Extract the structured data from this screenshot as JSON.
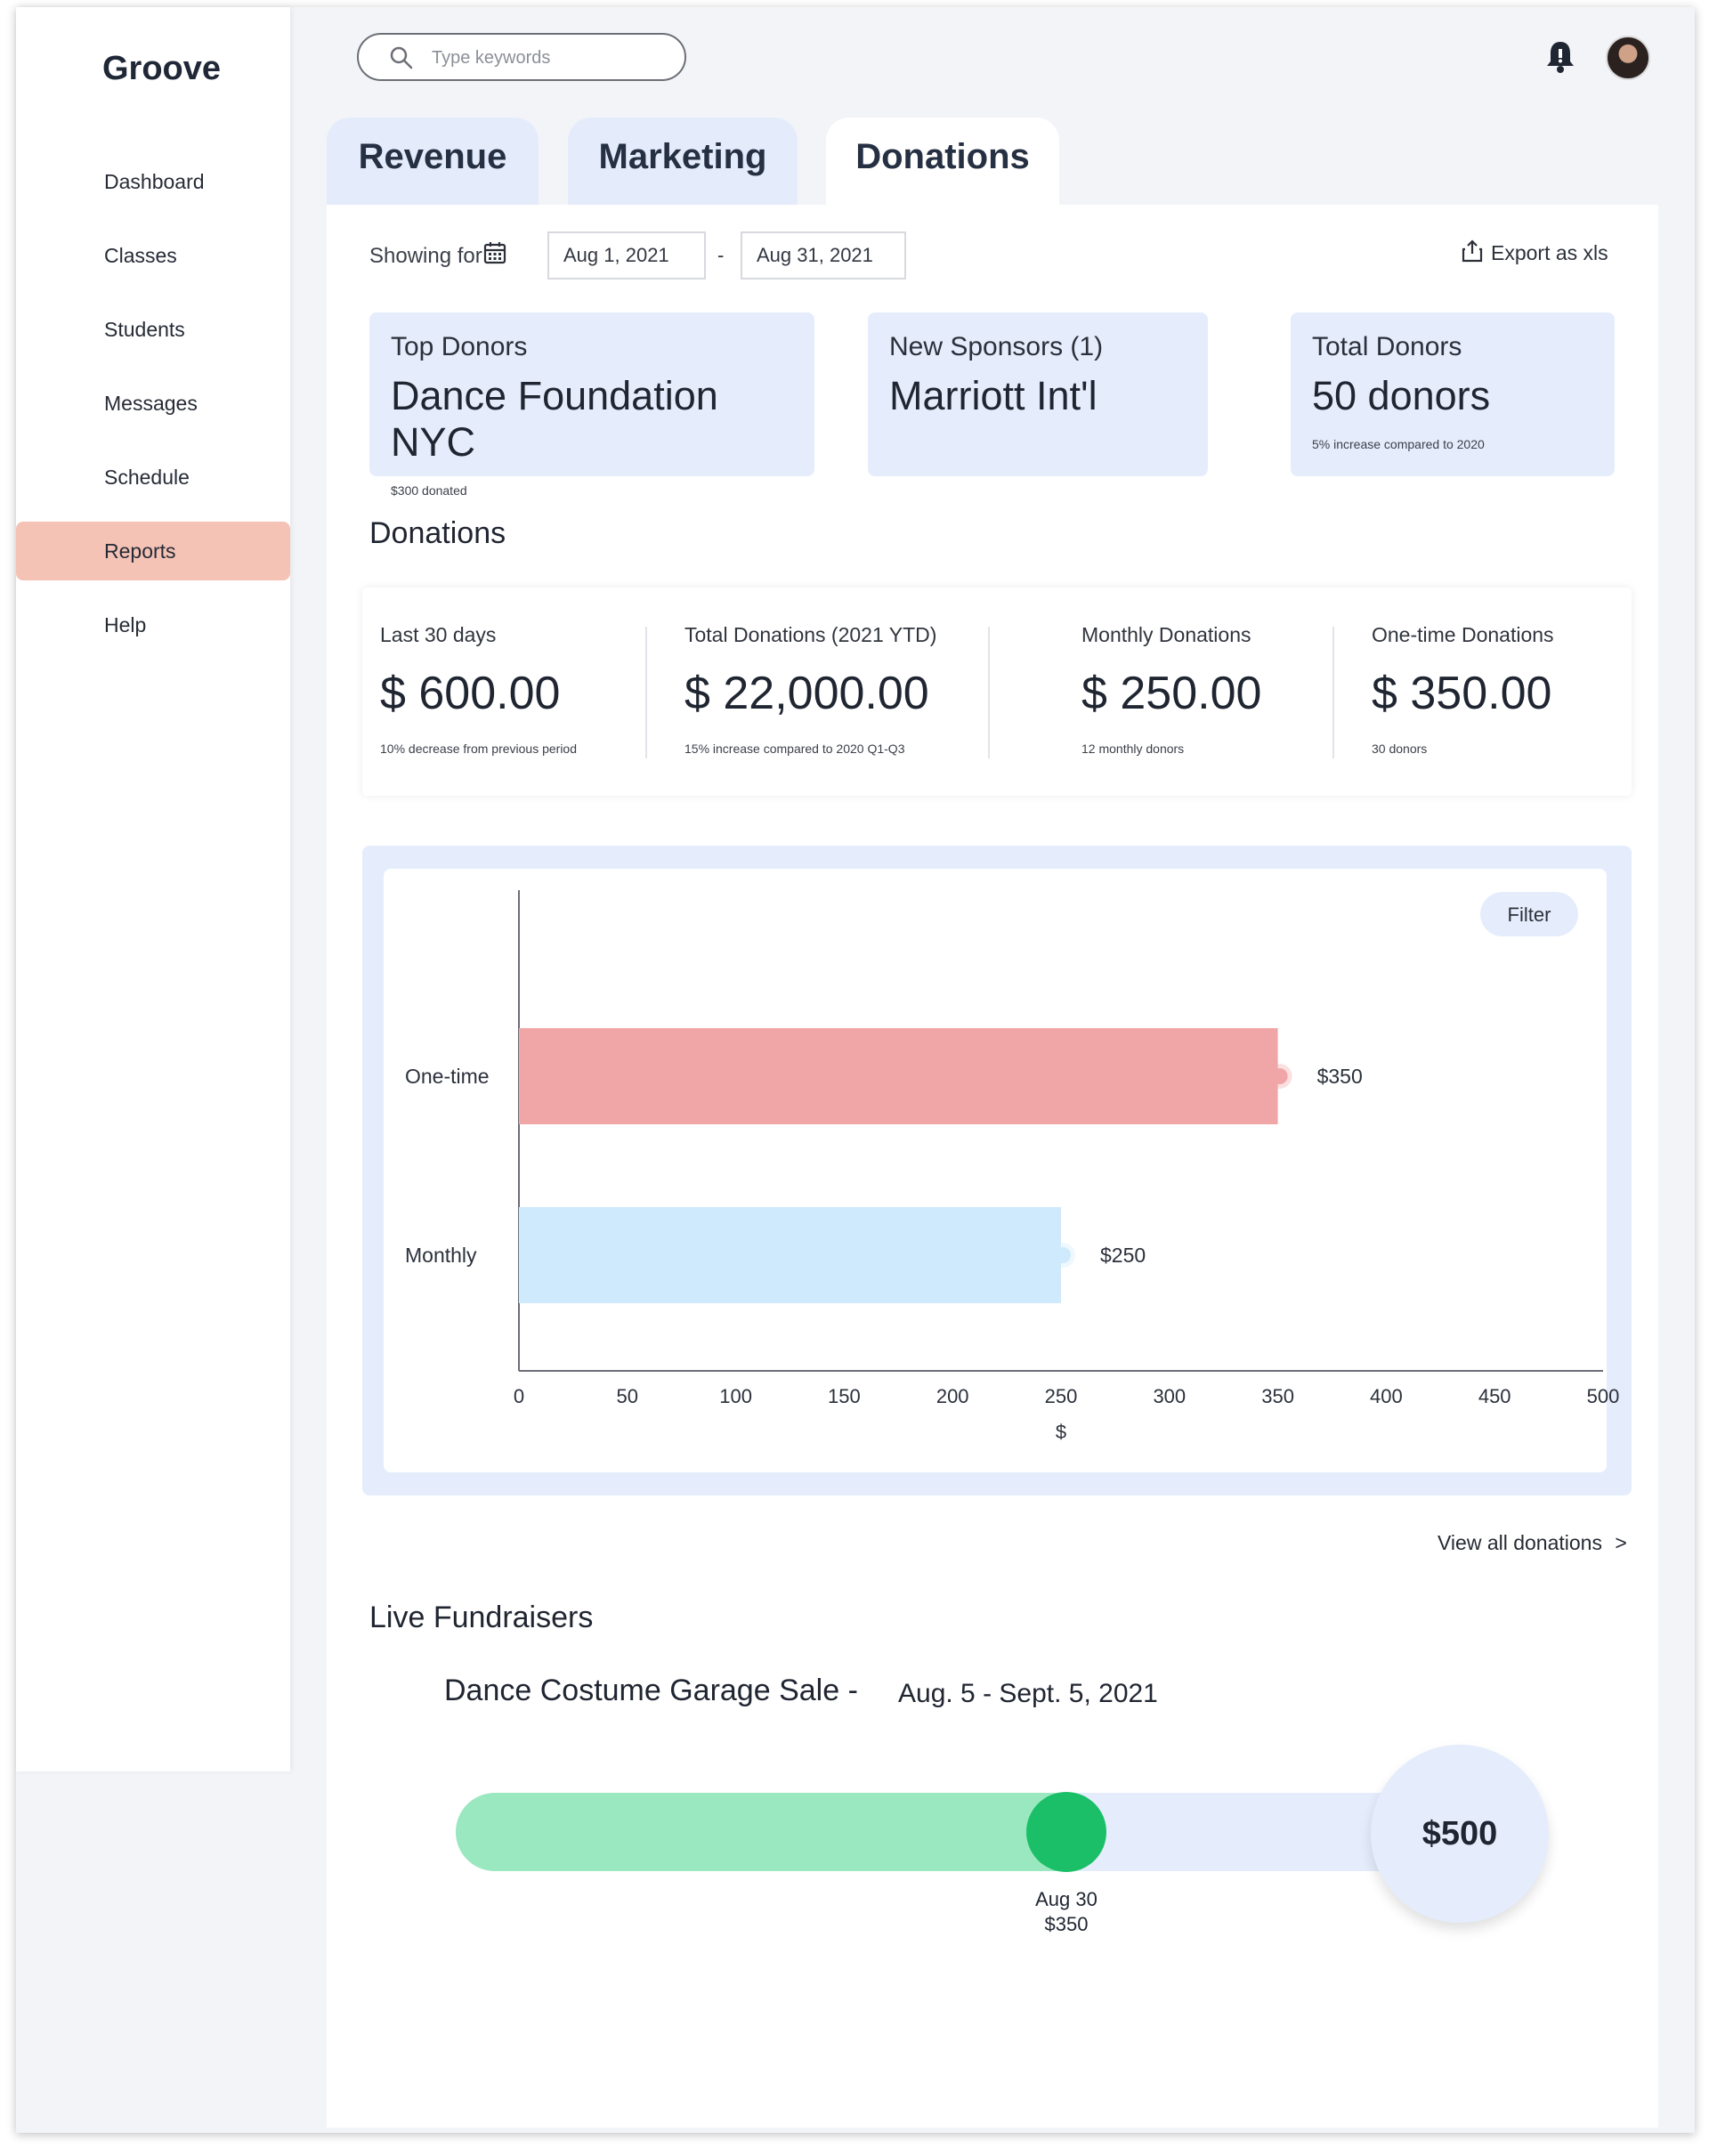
{
  "app": {
    "name": "Groove"
  },
  "sidebar": {
    "items": [
      {
        "label": "Dashboard",
        "active": false
      },
      {
        "label": "Classes",
        "active": false
      },
      {
        "label": "Students",
        "active": false
      },
      {
        "label": "Messages",
        "active": false
      },
      {
        "label": "Schedule",
        "active": false
      },
      {
        "label": "Reports",
        "active": true
      },
      {
        "label": "Help",
        "active": false
      }
    ]
  },
  "header": {
    "search_placeholder": "Type keywords",
    "icons": [
      "search-icon",
      "bell-icon",
      "avatar"
    ]
  },
  "tabs": [
    {
      "label": "Revenue",
      "active": false
    },
    {
      "label": "Marketing",
      "active": false
    },
    {
      "label": "Donations",
      "active": true
    }
  ],
  "filters": {
    "showing_label": "Showing for",
    "start_date": "Aug 1, 2021",
    "separator": "-",
    "end_date": "Aug 31, 2021",
    "export_label": "Export as xls"
  },
  "kpis": [
    {
      "label": "Top Donors",
      "value": "Dance Foundation NYC",
      "sub": "$300 donated"
    },
    {
      "label": "New Sponsors (1)",
      "value": "Marriott Int'l",
      "sub": ""
    },
    {
      "label": "Total Donors",
      "value": "50 donors",
      "sub": "5% increase compared to 2020"
    }
  ],
  "donations": {
    "title": "Donations",
    "stats": [
      {
        "label": "Last 30 days",
        "value": "$ 600.00",
        "sub": "10% decrease from previous period"
      },
      {
        "label": "Total Donations (2021 YTD)",
        "value": "$ 22,000.00",
        "sub": "15% increase compared to 2020 Q1-Q3"
      },
      {
        "label": "Monthly Donations",
        "value": "$ 250.00",
        "sub": "12 monthly donors"
      },
      {
        "label": "One-time Donations",
        "value": "$ 350.00",
        "sub": "30 donors"
      }
    ],
    "filter_label": "Filter",
    "view_all_label": "View all donations",
    "view_all_arrow": ">"
  },
  "chart_data": {
    "type": "bar",
    "orientation": "horizontal",
    "categories": [
      "One-time",
      "Monthly"
    ],
    "values": [
      350,
      250
    ],
    "value_labels": [
      "$350",
      "$250"
    ],
    "colors": [
      "#f0a6a6",
      "#cfeafd"
    ],
    "xlabel": "$",
    "xlim": [
      0,
      500
    ],
    "xticks": [
      0,
      50,
      100,
      150,
      200,
      250,
      300,
      350,
      400,
      450,
      500
    ],
    "grid": false
  },
  "fundraisers": {
    "title": "Live Fundraisers",
    "items": [
      {
        "name": "Dance Costume Garage Sale -",
        "dates": "Aug. 5 - Sept. 5, 2021",
        "goal_label": "$500",
        "goal": 500,
        "raised": 350,
        "marker_date": "Aug 30",
        "marker_amount": "$350",
        "bar_color": "#9ae8c0",
        "knob_color": "#1bbf68"
      }
    ]
  }
}
